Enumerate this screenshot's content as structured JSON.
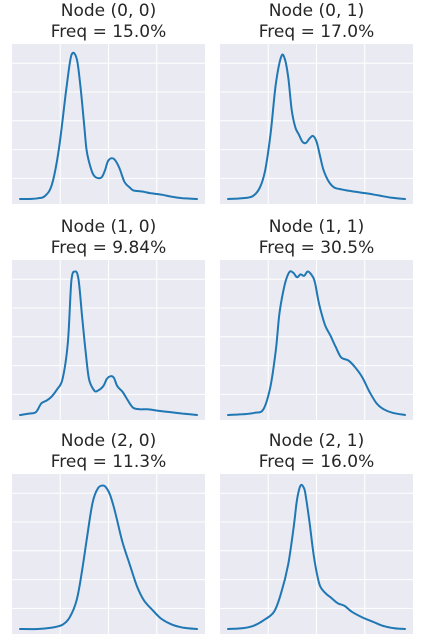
{
  "style": {
    "line_color": "#1f77b4",
    "panel_bg": "#eaeaf2",
    "grid_color": "#ffffff",
    "title_color": "#262626"
  },
  "chart_data": [
    {
      "type": "line",
      "title": "Node (0, 0)\nFreq = 15.0%",
      "title_lines": [
        "Node (0, 0)",
        "Freq = 15.0%"
      ],
      "xlim": [
        0,
        1
      ],
      "ylim": [
        0,
        1.08
      ],
      "grid": true,
      "ticks_visible": false,
      "x": [
        0,
        0.05,
        0.1,
        0.14,
        0.18,
        0.22,
        0.26,
        0.29,
        0.32,
        0.34,
        0.36,
        0.375,
        0.39,
        0.41,
        0.43,
        0.46,
        0.48,
        0.5,
        0.53,
        0.56,
        0.59,
        0.62,
        0.64,
        0.67,
        0.7,
        0.74,
        0.8,
        0.86,
        0.92,
        1.0
      ],
      "series": [
        {
          "values": [
            0.0,
            0.0,
            0.005,
            0.02,
            0.1,
            0.35,
            0.75,
            1.0,
            0.98,
            0.8,
            0.55,
            0.35,
            0.26,
            0.18,
            0.15,
            0.15,
            0.2,
            0.27,
            0.28,
            0.22,
            0.12,
            0.08,
            0.06,
            0.055,
            0.05,
            0.04,
            0.03,
            0.015,
            0.005,
            0.0
          ]
        }
      ]
    },
    {
      "type": "line",
      "title": "Node (0, 1)\nFreq = 17.0%",
      "title_lines": [
        "Node (0, 1)",
        "Freq = 17.0%"
      ],
      "xlim": [
        0,
        1
      ],
      "ylim": [
        0,
        1.08
      ],
      "grid": true,
      "ticks_visible": false,
      "x": [
        0,
        0.08,
        0.14,
        0.18,
        0.21,
        0.24,
        0.27,
        0.3,
        0.32,
        0.34,
        0.36,
        0.38,
        0.4,
        0.42,
        0.44,
        0.46,
        0.48,
        0.5,
        0.52,
        0.54,
        0.57,
        0.6,
        0.63,
        0.67,
        0.72,
        0.78,
        0.85,
        0.92,
        1.0
      ],
      "series": [
        {
          "values": [
            0.0,
            0.005,
            0.02,
            0.08,
            0.2,
            0.45,
            0.8,
            0.99,
            0.98,
            0.85,
            0.62,
            0.5,
            0.45,
            0.4,
            0.39,
            0.42,
            0.44,
            0.4,
            0.3,
            0.2,
            0.12,
            0.08,
            0.07,
            0.06,
            0.05,
            0.04,
            0.025,
            0.01,
            0.0
          ]
        }
      ]
    },
    {
      "type": "line",
      "title": "Node (1, 0)\nFreq = 9.84%",
      "title_lines": [
        "Node (1, 0)",
        "Freq = 9.84%"
      ],
      "xlim": [
        0,
        1
      ],
      "ylim": [
        0,
        1.08
      ],
      "grid": true,
      "ticks_visible": false,
      "x": [
        0,
        0.05,
        0.09,
        0.12,
        0.15,
        0.18,
        0.21,
        0.24,
        0.27,
        0.29,
        0.31,
        0.33,
        0.35,
        0.37,
        0.39,
        0.42,
        0.44,
        0.47,
        0.49,
        0.51,
        0.53,
        0.55,
        0.58,
        0.61,
        0.64,
        0.68,
        0.72,
        0.78,
        0.85,
        0.92,
        1.0
      ],
      "series": [
        {
          "values": [
            0.0,
            0.01,
            0.02,
            0.08,
            0.1,
            0.13,
            0.18,
            0.25,
            0.5,
            0.93,
            1.0,
            0.95,
            0.7,
            0.45,
            0.25,
            0.17,
            0.17,
            0.2,
            0.25,
            0.27,
            0.26,
            0.2,
            0.16,
            0.1,
            0.05,
            0.04,
            0.04,
            0.03,
            0.02,
            0.01,
            0.0
          ]
        }
      ]
    },
    {
      "type": "line",
      "title": "Node (1, 1)\nFreq = 30.5%",
      "title_lines": [
        "Node (1, 1)",
        "Freq = 30.5%"
      ],
      "xlim": [
        0,
        1
      ],
      "ylim": [
        0,
        1.08
      ],
      "grid": true,
      "ticks_visible": false,
      "x": [
        0,
        0.08,
        0.15,
        0.2,
        0.24,
        0.27,
        0.29,
        0.31,
        0.33,
        0.35,
        0.37,
        0.39,
        0.41,
        0.43,
        0.45,
        0.47,
        0.49,
        0.51,
        0.53,
        0.55,
        0.58,
        0.61,
        0.64,
        0.68,
        0.72,
        0.76,
        0.8,
        0.84,
        0.88,
        0.93,
        1.0
      ],
      "series": [
        {
          "values": [
            0.0,
            0.005,
            0.015,
            0.04,
            0.2,
            0.45,
            0.7,
            0.85,
            0.95,
            1.0,
            0.99,
            0.96,
            0.98,
            0.97,
            1.0,
            0.98,
            0.93,
            0.8,
            0.7,
            0.62,
            0.55,
            0.47,
            0.4,
            0.38,
            0.33,
            0.26,
            0.16,
            0.08,
            0.04,
            0.015,
            0.0
          ]
        }
      ]
    },
    {
      "type": "line",
      "title": "Node (2, 0)\nFreq = 11.3%",
      "title_lines": [
        "Node (2, 0)",
        "Freq = 11.3%"
      ],
      "xlim": [
        0,
        1
      ],
      "ylim": [
        0,
        1.08
      ],
      "grid": true,
      "ticks_visible": false,
      "x": [
        0,
        0.1,
        0.18,
        0.24,
        0.28,
        0.32,
        0.35,
        0.38,
        0.41,
        0.44,
        0.47,
        0.49,
        0.51,
        0.53,
        0.55,
        0.58,
        0.62,
        0.66,
        0.7,
        0.75,
        0.8,
        0.86,
        0.92,
        1.0
      ],
      "series": [
        {
          "values": [
            0.0,
            0.0,
            0.01,
            0.03,
            0.08,
            0.2,
            0.4,
            0.65,
            0.88,
            0.98,
            1.0,
            0.98,
            0.93,
            0.85,
            0.75,
            0.6,
            0.45,
            0.3,
            0.2,
            0.13,
            0.07,
            0.03,
            0.01,
            0.0
          ]
        }
      ]
    },
    {
      "type": "line",
      "title": "Node (2, 1)\nFreq = 16.0%",
      "title_lines": [
        "Node (2, 1)",
        "Freq = 16.0%"
      ],
      "xlim": [
        0,
        1
      ],
      "ylim": [
        0,
        1.08
      ],
      "grid": true,
      "ticks_visible": false,
      "x": [
        0,
        0.08,
        0.14,
        0.2,
        0.26,
        0.3,
        0.34,
        0.37,
        0.39,
        0.41,
        0.43,
        0.44,
        0.46,
        0.48,
        0.5,
        0.52,
        0.55,
        0.58,
        0.62,
        0.66,
        0.7,
        0.76,
        0.82,
        0.88,
        0.94,
        1.0
      ],
      "series": [
        {
          "values": [
            0.0,
            0.005,
            0.02,
            0.06,
            0.12,
            0.25,
            0.45,
            0.7,
            0.9,
            1.0,
            0.98,
            0.92,
            0.75,
            0.55,
            0.4,
            0.3,
            0.25,
            0.22,
            0.18,
            0.16,
            0.12,
            0.08,
            0.05,
            0.02,
            0.005,
            0.0
          ]
        }
      ]
    }
  ]
}
